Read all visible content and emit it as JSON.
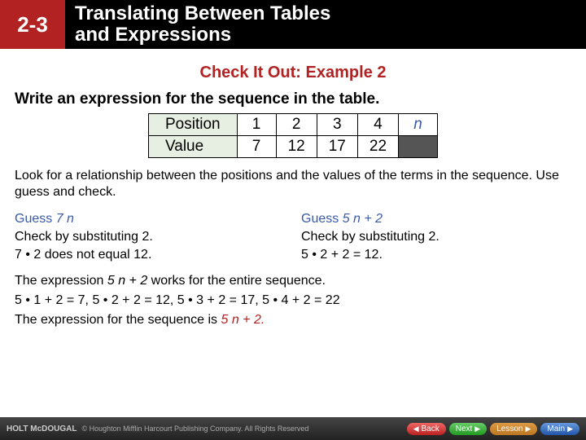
{
  "header": {
    "num": "2-3",
    "title_l1": "Translating Between Tables",
    "title_l2": "and Expressions"
  },
  "check": "Check It Out: Example 2",
  "prompt": "Write an expression for the sequence in the table.",
  "table": {
    "row_hdr1": "Position",
    "row_hdr2": "Value",
    "pos": [
      "1",
      "2",
      "3",
      "4"
    ],
    "posn": "n",
    "val": [
      "7",
      "12",
      "17",
      "22"
    ]
  },
  "instr": "Look for a relationship between the positions and the values of the terms in the sequence. Use guess and check.",
  "colA": {
    "guess_pre": "Guess ",
    "guess_exp": "7 n",
    "check": "Check by substituting 2.",
    "result": "7 • 2 does not equal 12."
  },
  "colB": {
    "guess_pre": "Guess ",
    "guess_exp": "5 n + 2",
    "check": "Check by substituting 2.",
    "result": "5 • 2 + 2 = 12."
  },
  "works_pre": "The expression ",
  "works_exp": "5 n + 2",
  "works_post": " works for the entire sequence.",
  "verify": "5 • 1 + 2 = 7, 5 • 2 + 2 = 12, 5 • 3 + 2 = 17, 5 • 4 + 2 = 22",
  "final_pre": "The expression for the sequence is ",
  "final_exp": "5 n + 2.",
  "footer": {
    "brand": "HOLT McDOUGAL",
    "rights": "© Houghton Mifflin Harcourt Publishing Company. All Rights Reserved",
    "back": "Back",
    "next": "Next",
    "lesson": "Lesson",
    "main": "Main"
  }
}
